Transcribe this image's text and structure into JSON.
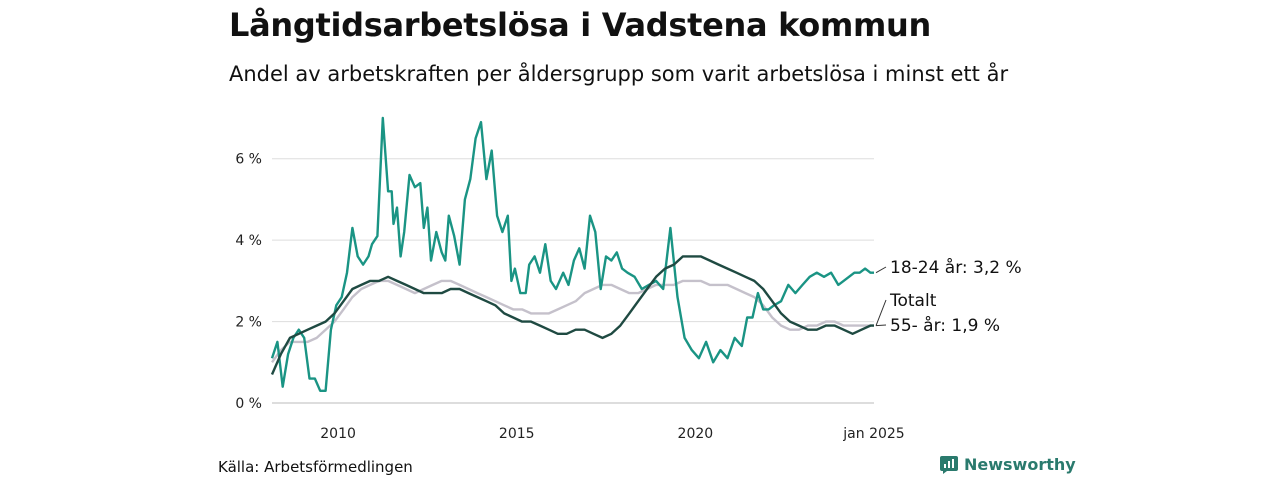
{
  "header": {
    "title": "Långtidsarbetslösa i Vadstena kommun",
    "subtitle": "Andel av arbetskraften per åldersgrupp som varit arbetslösa i minst ett år"
  },
  "footer": {
    "source": "Källa: Arbetsförmedlingen",
    "brand": "Newsworthy"
  },
  "colors": {
    "youth": "#1a9484",
    "total": "#1f4a42",
    "senior": "#c5c1cb",
    "grid": "#dddddd"
  },
  "chart_data": {
    "type": "line",
    "title": "Långtidsarbetslösa i Vadstena kommun",
    "ylim": [
      0,
      7
    ],
    "xlim": [
      2008.15,
      2025.0
    ],
    "yticks": [
      0,
      2,
      4,
      6
    ],
    "ytick_labels": [
      "0 %",
      "2 %",
      "4 %",
      "6 %"
    ],
    "xticks": [
      2010,
      2015,
      2020,
      2025
    ],
    "xtick_labels": [
      "2010",
      "2015",
      "2020",
      "jan 2025"
    ],
    "legend": "end-of-line labels",
    "series": [
      {
        "name": "18-24 år",
        "label": "18-24 år: 3,2 %",
        "color": "#1a9484",
        "x": [
          2008.15,
          2008.3,
          2008.45,
          2008.6,
          2008.75,
          2008.9,
          2009.05,
          2009.2,
          2009.35,
          2009.5,
          2009.65,
          2009.8,
          2009.95,
          2010.1,
          2010.25,
          2010.4,
          2010.55,
          2010.7,
          2010.85,
          2010.95,
          2011.1,
          2011.25,
          2011.4,
          2011.5,
          2011.55,
          2011.65,
          2011.75,
          2011.85,
          2012.0,
          2012.15,
          2012.3,
          2012.4,
          2012.5,
          2012.6,
          2012.75,
          2012.9,
          2013.0,
          2013.1,
          2013.25,
          2013.4,
          2013.55,
          2013.7,
          2013.85,
          2014.0,
          2014.15,
          2014.3,
          2014.45,
          2014.6,
          2014.75,
          2014.85,
          2014.95,
          2015.1,
          2015.25,
          2015.35,
          2015.5,
          2015.65,
          2015.8,
          2015.95,
          2016.1,
          2016.3,
          2016.45,
          2016.6,
          2016.75,
          2016.9,
          2017.05,
          2017.2,
          2017.35,
          2017.5,
          2017.65,
          2017.8,
          2017.95,
          2018.1,
          2018.3,
          2018.5,
          2018.7,
          2018.9,
          2019.1,
          2019.3,
          2019.5,
          2019.7,
          2019.9,
          2020.1,
          2020.3,
          2020.5,
          2020.7,
          2020.9,
          2021.1,
          2021.3,
          2021.45,
          2021.6,
          2021.75,
          2021.9,
          2022.05,
          2022.2,
          2022.4,
          2022.6,
          2022.8,
          2023.0,
          2023.2,
          2023.4,
          2023.6,
          2023.8,
          2024.0,
          2024.15,
          2024.3,
          2024.45,
          2024.6,
          2024.75,
          2024.9,
          2025.0
        ],
        "values": [
          1.1,
          1.5,
          0.4,
          1.2,
          1.6,
          1.8,
          1.6,
          0.6,
          0.6,
          0.3,
          0.3,
          1.8,
          2.4,
          2.6,
          3.2,
          4.3,
          3.6,
          3.4,
          3.6,
          3.9,
          4.1,
          7.0,
          5.2,
          5.2,
          4.4,
          4.8,
          3.6,
          4.2,
          5.6,
          5.3,
          5.4,
          4.3,
          4.8,
          3.5,
          4.2,
          3.7,
          3.5,
          4.6,
          4.1,
          3.4,
          5.0,
          5.5,
          6.5,
          6.9,
          5.5,
          6.2,
          4.6,
          4.2,
          4.6,
          3.0,
          3.3,
          2.7,
          2.7,
          3.4,
          3.6,
          3.2,
          3.9,
          3.0,
          2.8,
          3.2,
          2.9,
          3.5,
          3.8,
          3.3,
          4.6,
          4.2,
          2.8,
          3.6,
          3.5,
          3.7,
          3.3,
          3.2,
          3.1,
          2.8,
          2.9,
          3.0,
          2.8,
          4.3,
          2.6,
          1.6,
          1.3,
          1.1,
          1.5,
          1.0,
          1.3,
          1.1,
          1.6,
          1.4,
          2.1,
          2.1,
          2.7,
          2.3,
          2.3,
          2.4,
          2.5,
          2.9,
          2.7,
          2.9,
          3.1,
          3.2,
          3.1,
          3.2,
          2.9,
          3.0,
          3.1,
          3.2,
          3.2,
          3.3,
          3.2,
          3.2
        ]
      },
      {
        "name": "Totalt",
        "label": "Totalt",
        "color": "#1f4a42",
        "x": [
          2008.15,
          2008.4,
          2008.65,
          2008.9,
          2009.15,
          2009.4,
          2009.65,
          2009.9,
          2010.15,
          2010.4,
          2010.65,
          2010.9,
          2011.15,
          2011.4,
          2011.65,
          2011.9,
          2012.15,
          2012.4,
          2012.65,
          2012.9,
          2013.15,
          2013.4,
          2013.65,
          2013.9,
          2014.15,
          2014.4,
          2014.65,
          2014.9,
          2015.15,
          2015.4,
          2015.65,
          2015.9,
          2016.15,
          2016.4,
          2016.65,
          2016.9,
          2017.15,
          2017.4,
          2017.65,
          2017.9,
          2018.15,
          2018.4,
          2018.65,
          2018.9,
          2019.15,
          2019.4,
          2019.65,
          2019.9,
          2020.15,
          2020.4,
          2020.65,
          2020.9,
          2021.15,
          2021.4,
          2021.65,
          2021.9,
          2022.15,
          2022.4,
          2022.65,
          2022.9,
          2023.15,
          2023.4,
          2023.65,
          2023.9,
          2024.15,
          2024.4,
          2024.65,
          2024.9,
          2025.0
        ],
        "values": [
          0.7,
          1.2,
          1.6,
          1.7,
          1.8,
          1.9,
          2.0,
          2.2,
          2.5,
          2.8,
          2.9,
          3.0,
          3.0,
          3.1,
          3.0,
          2.9,
          2.8,
          2.7,
          2.7,
          2.7,
          2.8,
          2.8,
          2.7,
          2.6,
          2.5,
          2.4,
          2.2,
          2.1,
          2.0,
          2.0,
          1.9,
          1.8,
          1.7,
          1.7,
          1.8,
          1.8,
          1.7,
          1.6,
          1.7,
          1.9,
          2.2,
          2.5,
          2.8,
          3.1,
          3.3,
          3.4,
          3.6,
          3.6,
          3.6,
          3.5,
          3.4,
          3.3,
          3.2,
          3.1,
          3.0,
          2.8,
          2.5,
          2.2,
          2.0,
          1.9,
          1.8,
          1.8,
          1.9,
          1.9,
          1.8,
          1.7,
          1.8,
          1.9,
          1.9
        ]
      },
      {
        "name": "55- år",
        "label": "55- år: 1,9 %",
        "color": "#c5c1cb",
        "x": [
          2008.15,
          2008.4,
          2008.65,
          2008.9,
          2009.15,
          2009.4,
          2009.65,
          2009.9,
          2010.15,
          2010.4,
          2010.65,
          2010.9,
          2011.15,
          2011.4,
          2011.65,
          2011.9,
          2012.15,
          2012.4,
          2012.65,
          2012.9,
          2013.15,
          2013.4,
          2013.65,
          2013.9,
          2014.15,
          2014.4,
          2014.65,
          2014.9,
          2015.15,
          2015.4,
          2015.65,
          2015.9,
          2016.15,
          2016.4,
          2016.65,
          2016.9,
          2017.15,
          2017.4,
          2017.65,
          2017.9,
          2018.15,
          2018.4,
          2018.65,
          2018.9,
          2019.15,
          2019.4,
          2019.65,
          2019.9,
          2020.15,
          2020.4,
          2020.65,
          2020.9,
          2021.15,
          2021.4,
          2021.65,
          2021.9,
          2022.15,
          2022.4,
          2022.65,
          2022.9,
          2023.15,
          2023.4,
          2023.65,
          2023.9,
          2024.15,
          2024.4,
          2024.65,
          2024.9,
          2025.0
        ],
        "values": [
          1.0,
          1.3,
          1.5,
          1.5,
          1.5,
          1.6,
          1.8,
          2.0,
          2.3,
          2.6,
          2.8,
          2.9,
          3.0,
          3.0,
          2.9,
          2.8,
          2.7,
          2.8,
          2.9,
          3.0,
          3.0,
          2.9,
          2.8,
          2.7,
          2.6,
          2.5,
          2.4,
          2.3,
          2.3,
          2.2,
          2.2,
          2.2,
          2.3,
          2.4,
          2.5,
          2.7,
          2.8,
          2.9,
          2.9,
          2.8,
          2.7,
          2.7,
          2.8,
          2.9,
          2.9,
          2.9,
          3.0,
          3.0,
          3.0,
          2.9,
          2.9,
          2.9,
          2.8,
          2.7,
          2.6,
          2.4,
          2.1,
          1.9,
          1.8,
          1.8,
          1.9,
          1.9,
          2.0,
          2.0,
          1.9,
          1.9,
          1.9,
          1.9,
          1.9
        ]
      }
    ]
  }
}
